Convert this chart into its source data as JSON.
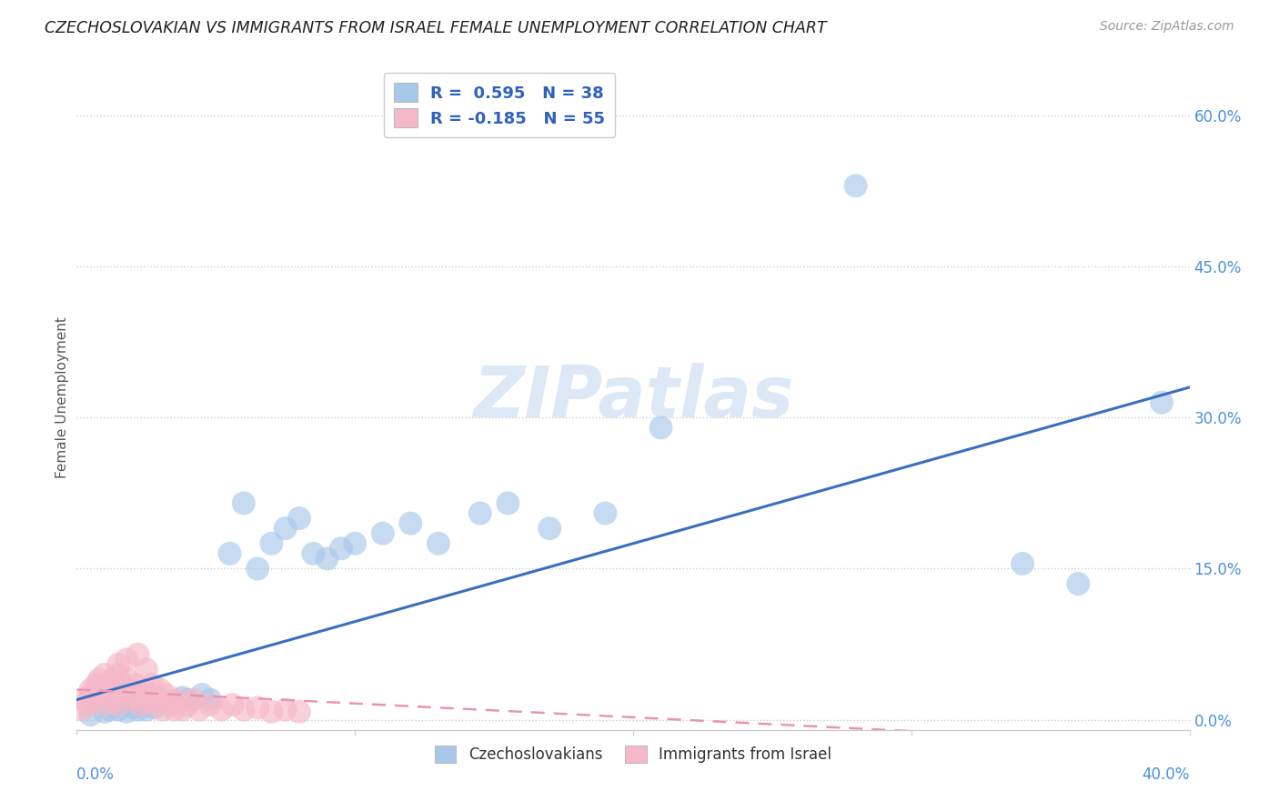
{
  "title": "CZECHOSLOVAKIAN VS IMMIGRANTS FROM ISRAEL FEMALE UNEMPLOYMENT CORRELATION CHART",
  "source": "Source: ZipAtlas.com",
  "ylabel": "Female Unemployment",
  "ytick_values": [
    0.0,
    0.15,
    0.3,
    0.45,
    0.6
  ],
  "xlim": [
    0.0,
    0.4
  ],
  "ylim": [
    -0.01,
    0.65
  ],
  "blue_R": 0.595,
  "blue_N": 38,
  "pink_R": -0.185,
  "pink_N": 55,
  "blue_color": "#a8c8ea",
  "pink_color": "#f5b8c8",
  "blue_line_color": "#3a6fc0",
  "pink_line_color": "#e896b0",
  "legend_label_blue": "Czechoslovakians",
  "legend_label_pink": "Immigrants from Israel",
  "blue_x": [
    0.005,
    0.01,
    0.012,
    0.015,
    0.018,
    0.02,
    0.022,
    0.025,
    0.025,
    0.028,
    0.03,
    0.035,
    0.038,
    0.04,
    0.045,
    0.048,
    0.055,
    0.06,
    0.065,
    0.07,
    0.075,
    0.08,
    0.085,
    0.09,
    0.095,
    0.1,
    0.11,
    0.12,
    0.13,
    0.145,
    0.155,
    0.17,
    0.19,
    0.21,
    0.28,
    0.34,
    0.36,
    0.39
  ],
  "blue_y": [
    0.005,
    0.008,
    0.01,
    0.01,
    0.008,
    0.012,
    0.01,
    0.015,
    0.01,
    0.012,
    0.02,
    0.018,
    0.022,
    0.02,
    0.025,
    0.02,
    0.165,
    0.215,
    0.15,
    0.175,
    0.19,
    0.2,
    0.165,
    0.16,
    0.17,
    0.175,
    0.185,
    0.195,
    0.175,
    0.205,
    0.215,
    0.19,
    0.205,
    0.29,
    0.53,
    0.155,
    0.135,
    0.315
  ],
  "pink_x": [
    0.002,
    0.003,
    0.004,
    0.005,
    0.005,
    0.006,
    0.007,
    0.007,
    0.008,
    0.009,
    0.01,
    0.01,
    0.011,
    0.012,
    0.013,
    0.013,
    0.014,
    0.015,
    0.015,
    0.016,
    0.017,
    0.018,
    0.019,
    0.02,
    0.021,
    0.022,
    0.023,
    0.024,
    0.025,
    0.026,
    0.027,
    0.028,
    0.029,
    0.03,
    0.031,
    0.032,
    0.034,
    0.036,
    0.038,
    0.04,
    0.042,
    0.044,
    0.048,
    0.052,
    0.056,
    0.06,
    0.065,
    0.07,
    0.075,
    0.08,
    0.025,
    0.015,
    0.018,
    0.022,
    0.035
  ],
  "pink_y": [
    0.01,
    0.02,
    0.015,
    0.025,
    0.03,
    0.02,
    0.035,
    0.025,
    0.04,
    0.03,
    0.045,
    0.015,
    0.035,
    0.025,
    0.04,
    0.02,
    0.03,
    0.045,
    0.015,
    0.035,
    0.025,
    0.04,
    0.03,
    0.02,
    0.035,
    0.025,
    0.015,
    0.03,
    0.02,
    0.025,
    0.035,
    0.015,
    0.02,
    0.03,
    0.01,
    0.025,
    0.015,
    0.02,
    0.01,
    0.015,
    0.02,
    0.01,
    0.015,
    0.01,
    0.015,
    0.01,
    0.012,
    0.008,
    0.01,
    0.008,
    0.05,
    0.055,
    0.06,
    0.065,
    0.01
  ]
}
